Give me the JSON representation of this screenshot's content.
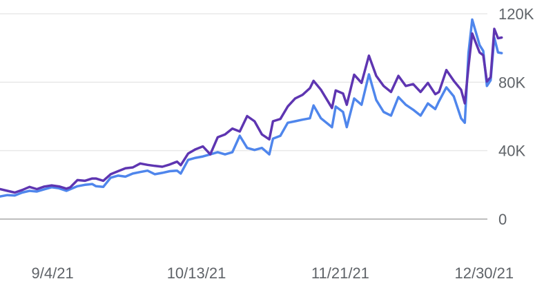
{
  "colors": {
    "series_dark": "#5e35b1",
    "series_light": "#4f86ec",
    "grid": "#e8e8e8",
    "axis": "#bdbdbd",
    "label": "#5f6368"
  },
  "chart_data": {
    "type": "line",
    "title": "",
    "xlabel": "",
    "ylabel": "",
    "x_tick_labels": [
      "9/4/21",
      "10/13/21",
      "11/21/21",
      "12/30/21"
    ],
    "y_tick_labels": [
      "0",
      "40K",
      "80K",
      "120K"
    ],
    "y_ticks": [
      0,
      40000,
      80000,
      120000
    ],
    "x_range": [
      "2021-08-23",
      "2022-01-01"
    ],
    "ylim": [
      0,
      120000
    ],
    "grid": true,
    "legend": "none",
    "series": [
      {
        "color_key": "series_dark",
        "points": [
          [
            "2021-08-23",
            17500
          ],
          [
            "2021-08-25",
            16500
          ],
          [
            "2021-08-27",
            15500
          ],
          [
            "2021-08-29",
            17000
          ],
          [
            "2021-08-31",
            18800
          ],
          [
            "2021-09-02",
            17500
          ],
          [
            "2021-09-04",
            19000
          ],
          [
            "2021-09-06",
            19700
          ],
          [
            "2021-09-08",
            19100
          ],
          [
            "2021-09-10",
            17800
          ],
          [
            "2021-09-11",
            18500
          ],
          [
            "2021-09-13",
            22800
          ],
          [
            "2021-09-15",
            22400
          ],
          [
            "2021-09-17",
            23700
          ],
          [
            "2021-09-18",
            23700
          ],
          [
            "2021-09-20",
            22400
          ],
          [
            "2021-09-22",
            26200
          ],
          [
            "2021-09-24",
            28000
          ],
          [
            "2021-09-26",
            29700
          ],
          [
            "2021-09-28",
            30200
          ],
          [
            "2021-09-30",
            32500
          ],
          [
            "2021-10-02",
            31700
          ],
          [
            "2021-10-04",
            31100
          ],
          [
            "2021-10-06",
            30600
          ],
          [
            "2021-10-08",
            31900
          ],
          [
            "2021-10-10",
            33600
          ],
          [
            "2021-10-11",
            31500
          ],
          [
            "2021-10-13",
            38300
          ],
          [
            "2021-10-15",
            40800
          ],
          [
            "2021-10-17",
            42500
          ],
          [
            "2021-10-19",
            37800
          ],
          [
            "2021-10-21",
            47800
          ],
          [
            "2021-10-23",
            49500
          ],
          [
            "2021-10-25",
            52900
          ],
          [
            "2021-10-27",
            51200
          ],
          [
            "2021-10-29",
            60200
          ],
          [
            "2021-10-31",
            57200
          ],
          [
            "2021-11-02",
            49500
          ],
          [
            "2021-11-04",
            46600
          ],
          [
            "2021-11-05",
            57200
          ],
          [
            "2021-11-07",
            58500
          ],
          [
            "2021-11-09",
            65800
          ],
          [
            "2021-11-11",
            70500
          ],
          [
            "2021-11-13",
            72600
          ],
          [
            "2021-11-15",
            76500
          ],
          [
            "2021-11-16",
            80800
          ],
          [
            "2021-11-18",
            75600
          ],
          [
            "2021-11-21",
            64900
          ],
          [
            "2021-11-22",
            75200
          ],
          [
            "2021-11-24",
            73400
          ],
          [
            "2021-11-25",
            66800
          ],
          [
            "2021-11-27",
            84400
          ],
          [
            "2021-11-29",
            79600
          ],
          [
            "2021-12-01",
            95500
          ],
          [
            "2021-12-03",
            83700
          ],
          [
            "2021-12-05",
            77800
          ],
          [
            "2021-12-07",
            74300
          ],
          [
            "2021-12-09",
            83700
          ],
          [
            "2021-12-11",
            77800
          ],
          [
            "2021-12-13",
            78900
          ],
          [
            "2021-12-15",
            74300
          ],
          [
            "2021-12-17",
            79600
          ],
          [
            "2021-12-19",
            73000
          ],
          [
            "2021-12-20",
            74300
          ],
          [
            "2021-12-22",
            87100
          ],
          [
            "2021-12-24",
            80800
          ],
          [
            "2021-12-26",
            75600
          ],
          [
            "2021-12-27",
            67600
          ],
          [
            "2021-12-28",
            88900
          ],
          [
            "2021-12-29",
            108500
          ],
          [
            "2021-12-31",
            97400
          ],
          [
            "2022-01-01",
            95700
          ],
          [
            "2022-01-02",
            80400
          ],
          [
            "2022-01-03",
            82900
          ],
          [
            "2022-01-04",
            111200
          ],
          [
            "2022-01-05",
            105700
          ],
          [
            "2022-01-06",
            106100
          ]
        ]
      },
      {
        "color_key": "series_light",
        "points": [
          [
            "2021-08-23",
            13200
          ],
          [
            "2021-08-25",
            14000
          ],
          [
            "2021-08-27",
            13800
          ],
          [
            "2021-08-29",
            15500
          ],
          [
            "2021-08-31",
            16500
          ],
          [
            "2021-09-02",
            16100
          ],
          [
            "2021-09-04",
            17400
          ],
          [
            "2021-09-06",
            18600
          ],
          [
            "2021-09-08",
            18000
          ],
          [
            "2021-09-10",
            16500
          ],
          [
            "2021-09-11",
            17400
          ],
          [
            "2021-09-13",
            19200
          ],
          [
            "2021-09-15",
            20000
          ],
          [
            "2021-09-17",
            20500
          ],
          [
            "2021-09-18",
            19200
          ],
          [
            "2021-09-20",
            18800
          ],
          [
            "2021-09-22",
            24200
          ],
          [
            "2021-09-24",
            25400
          ],
          [
            "2021-09-26",
            24800
          ],
          [
            "2021-09-28",
            26600
          ],
          [
            "2021-09-30",
            27500
          ],
          [
            "2021-10-02",
            28300
          ],
          [
            "2021-10-04",
            26200
          ],
          [
            "2021-10-06",
            27000
          ],
          [
            "2021-10-08",
            28000
          ],
          [
            "2021-10-10",
            28300
          ],
          [
            "2021-10-11",
            26600
          ],
          [
            "2021-10-13",
            34600
          ],
          [
            "2021-10-15",
            35800
          ],
          [
            "2021-10-17",
            36600
          ],
          [
            "2021-10-19",
            37800
          ],
          [
            "2021-10-21",
            39100
          ],
          [
            "2021-10-23",
            37800
          ],
          [
            "2021-10-25",
            39100
          ],
          [
            "2021-10-27",
            48700
          ],
          [
            "2021-10-29",
            41600
          ],
          [
            "2021-10-31",
            40400
          ],
          [
            "2021-11-02",
            41600
          ],
          [
            "2021-11-04",
            37800
          ],
          [
            "2021-11-05",
            47000
          ],
          [
            "2021-11-07",
            48700
          ],
          [
            "2021-11-09",
            56300
          ],
          [
            "2021-11-11",
            57200
          ],
          [
            "2021-11-13",
            58100
          ],
          [
            "2021-11-15",
            58900
          ],
          [
            "2021-11-16",
            66400
          ],
          [
            "2021-11-18",
            58900
          ],
          [
            "2021-11-21",
            53700
          ],
          [
            "2021-11-22",
            65800
          ],
          [
            "2021-11-24",
            62600
          ],
          [
            "2021-11-25",
            53700
          ],
          [
            "2021-11-27",
            70500
          ],
          [
            "2021-11-29",
            66800
          ],
          [
            "2021-12-01",
            84600
          ],
          [
            "2021-12-03",
            69600
          ],
          [
            "2021-12-05",
            62600
          ],
          [
            "2021-12-07",
            60500
          ],
          [
            "2021-12-09",
            71300
          ],
          [
            "2021-12-11",
            66800
          ],
          [
            "2021-12-13",
            63900
          ],
          [
            "2021-12-15",
            60500
          ],
          [
            "2021-12-17",
            67600
          ],
          [
            "2021-12-19",
            64300
          ],
          [
            "2021-12-20",
            68900
          ],
          [
            "2021-12-22",
            77000
          ],
          [
            "2021-12-24",
            71700
          ],
          [
            "2021-12-26",
            58900
          ],
          [
            "2021-12-27",
            56300
          ],
          [
            "2021-12-28",
            97000
          ],
          [
            "2021-12-29",
            116600
          ],
          [
            "2021-12-31",
            101700
          ],
          [
            "2022-01-01",
            98300
          ],
          [
            "2022-01-02",
            77800
          ],
          [
            "2022-01-03",
            81200
          ],
          [
            "2022-01-04",
            106100
          ],
          [
            "2022-01-05",
            97400
          ],
          [
            "2022-01-06",
            97000
          ]
        ]
      }
    ]
  }
}
